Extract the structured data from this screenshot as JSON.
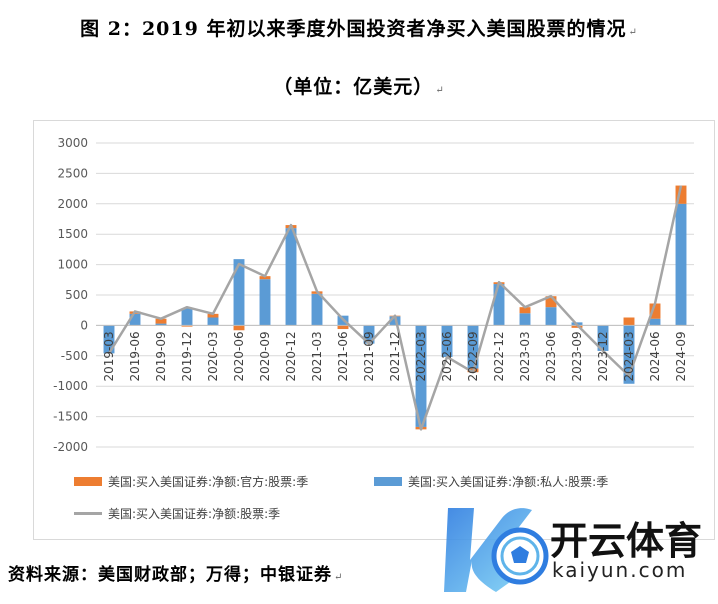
{
  "title": "图 2：2019 年初以来季度外国投资者净买入美国股票的情况",
  "unit": "（单位：亿美元）",
  "source": "资料来源：美国财政部；万得；中银证券",
  "logo": {
    "brand": "开云体育",
    "url": "kaiyun.com"
  },
  "colors": {
    "official": "#ED7D31",
    "private": "#5B9BD5",
    "total": "#A5A5A5"
  },
  "chart_data": {
    "type": "bar",
    "categories": [
      "2019-03",
      "2019-06",
      "2019-09",
      "2019-12",
      "2020-03",
      "2020-06",
      "2020-09",
      "2020-12",
      "2021-03",
      "2021-06",
      "2021-09",
      "2021-12",
      "2022-03",
      "2022-06",
      "2022-09",
      "2022-12",
      "2023-03",
      "2023-06",
      "2023-09",
      "2023-12",
      "2024-03",
      "2024-06",
      "2024-09"
    ],
    "series": [
      {
        "name": "美国:买入美国证券:净额:官方:股票:季",
        "kind": "bar",
        "values": [
          0,
          40,
          80,
          -20,
          60,
          -80,
          50,
          50,
          40,
          -60,
          0,
          10,
          -40,
          0,
          -60,
          30,
          100,
          180,
          -40,
          0,
          130,
          250,
          300
        ]
      },
      {
        "name": "美国:买入美国证券:净额:私人:股票:季",
        "kind": "bar",
        "values": [
          -460,
          190,
          30,
          280,
          130,
          1090,
          760,
          1600,
          520,
          160,
          -300,
          150,
          -1670,
          -520,
          -710,
          680,
          200,
          300,
          50,
          -420,
          -960,
          110,
          2000
        ]
      },
      {
        "name": "美国:买入美国证券:净额:股票:季",
        "kind": "line",
        "values": [
          -460,
          230,
          110,
          300,
          190,
          1010,
          810,
          1650,
          560,
          100,
          -300,
          160,
          -1710,
          -520,
          -770,
          710,
          300,
          480,
          10,
          -420,
          -830,
          360,
          2300
        ]
      }
    ],
    "ylim": [
      -2000,
      3000
    ],
    "yticks": [
      -2000,
      -1500,
      -1000,
      -500,
      0,
      500,
      1000,
      1500,
      2000,
      2500,
      3000
    ],
    "grid": true,
    "legend_position": "bottom",
    "stacked": true
  }
}
